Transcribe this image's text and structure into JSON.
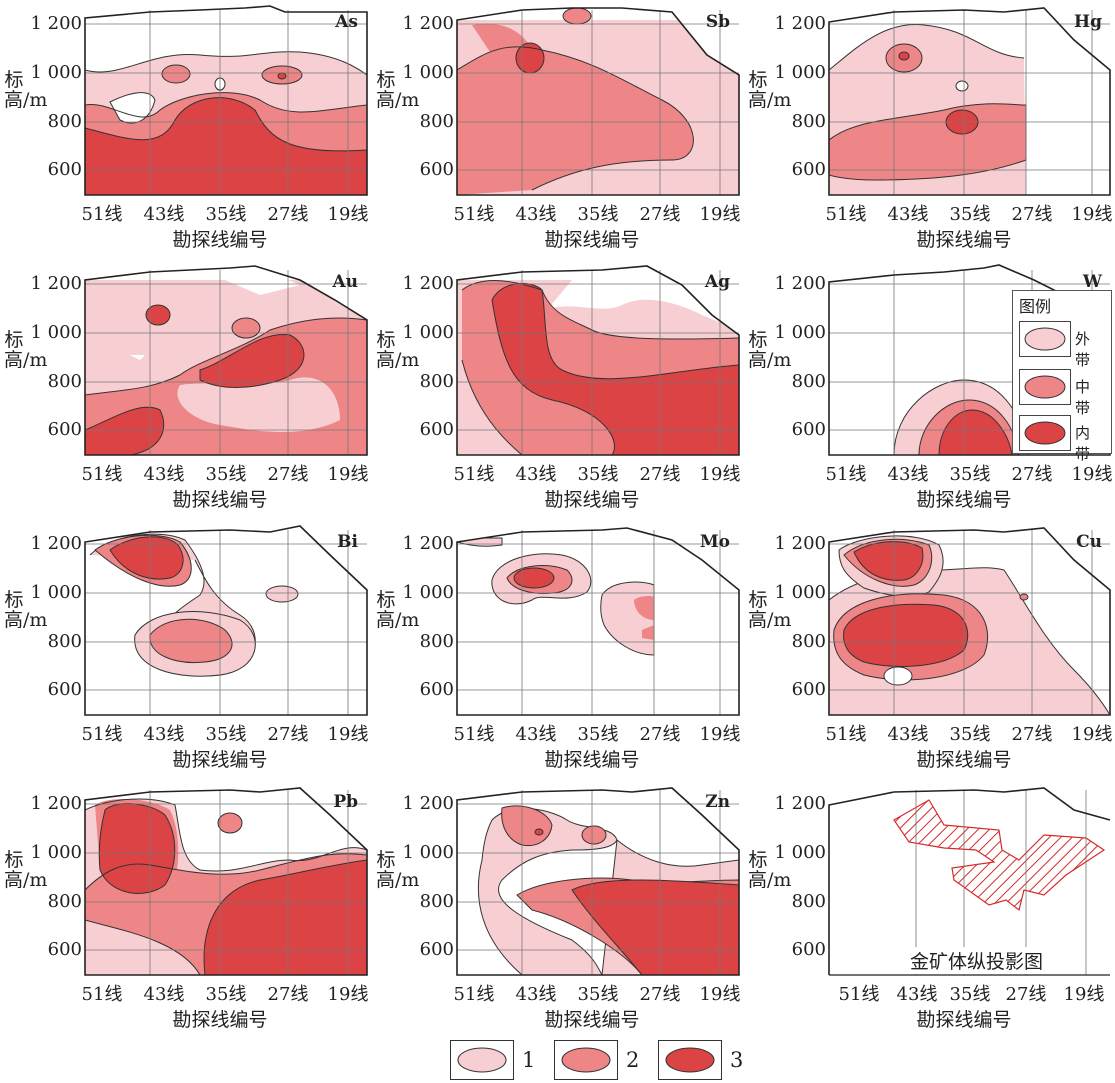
{
  "colors": {
    "outer": "#f7cfd2",
    "middle": "#ee8587",
    "inner": "#dc4345",
    "hatch": "#d62a2a",
    "line": "#333333"
  },
  "axis": {
    "ylabel": "标高/m",
    "xlabel": "勘探线编号",
    "yticks": [
      "1 200",
      "1 000",
      "800",
      "600"
    ],
    "xticks": [
      "51线",
      "43线",
      "35线",
      "27线",
      "19线"
    ]
  },
  "panels": [
    {
      "element": "As"
    },
    {
      "element": "Sb"
    },
    {
      "element": "Hg"
    },
    {
      "element": "Au"
    },
    {
      "element": "Ag"
    },
    {
      "element": "W"
    },
    {
      "element": "Bi"
    },
    {
      "element": "Mo"
    },
    {
      "element": "Cu"
    },
    {
      "element": "Pb"
    },
    {
      "element": "Zn"
    },
    {
      "element": ""
    }
  ],
  "panel_legend": {
    "title": "图例",
    "items": [
      {
        "label": "外 带",
        "zone": "outer"
      },
      {
        "label": "中 带",
        "zone": "middle"
      },
      {
        "label": "内 带",
        "zone": "inner"
      }
    ]
  },
  "projection_caption": "金矿体纵投影图",
  "bottom_legend": [
    {
      "label": "1",
      "zone": "outer"
    },
    {
      "label": "2",
      "zone": "middle"
    },
    {
      "label": "3",
      "zone": "inner"
    }
  ]
}
